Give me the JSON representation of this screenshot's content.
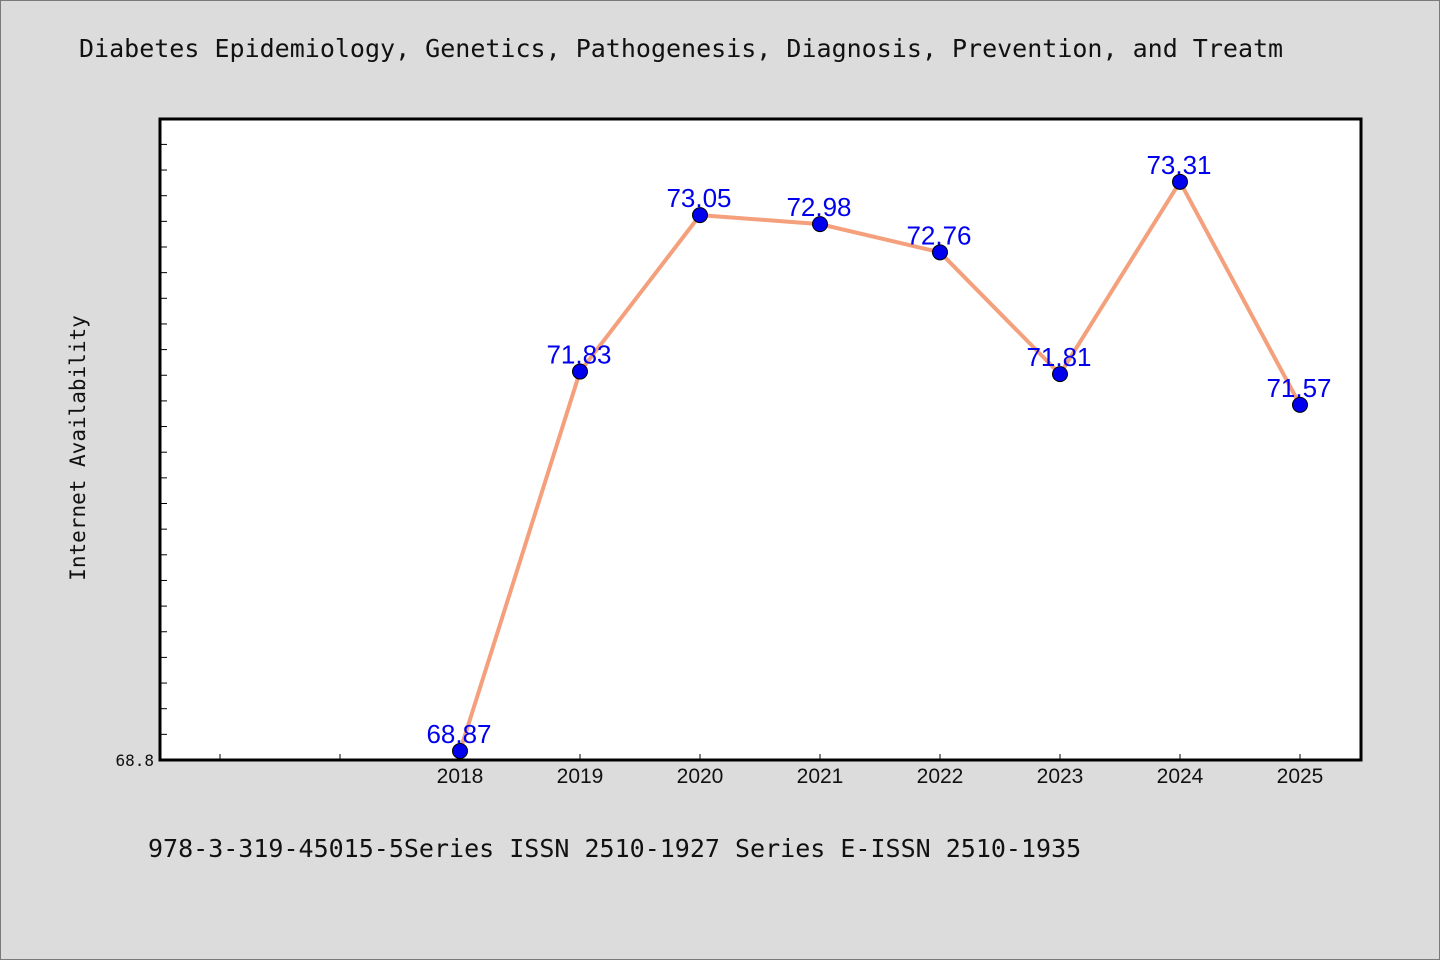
{
  "chart_title": "Diabetes Epidemiology, Genetics, Pathogenesis, Diagnosis, Prevention, and Treatm",
  "footer_text": "978-3-319-45015-5Series ISSN 2510-1927 Series E-ISSN 2510-1935",
  "chart_data": {
    "type": "line",
    "title": "Diabetes Epidemiology, Genetics, Pathogenesis, Diagnosis, Prevention, and Treatm",
    "xlabel": "",
    "ylabel": "Internet Availability",
    "categories": [
      "2018",
      "2019",
      "2020",
      "2021",
      "2022",
      "2023",
      "2024",
      "2025"
    ],
    "x_slots_before_data": 2,
    "series": [
      {
        "values": [
          68.87,
          71.83,
          73.05,
          72.98,
          72.76,
          71.81,
          73.31,
          71.57
        ],
        "labels": [
          "68.87",
          "71.83",
          "73.05",
          "72.98",
          "72.76",
          "71.81",
          "73.31",
          "71.57"
        ],
        "line_color": "#f4a07c",
        "marker_color": "#0000ee"
      }
    ],
    "ylim": [
      68.8,
      73.8
    ],
    "yticks_labeled": [
      "68.8"
    ],
    "grid": false,
    "legend": "none"
  }
}
